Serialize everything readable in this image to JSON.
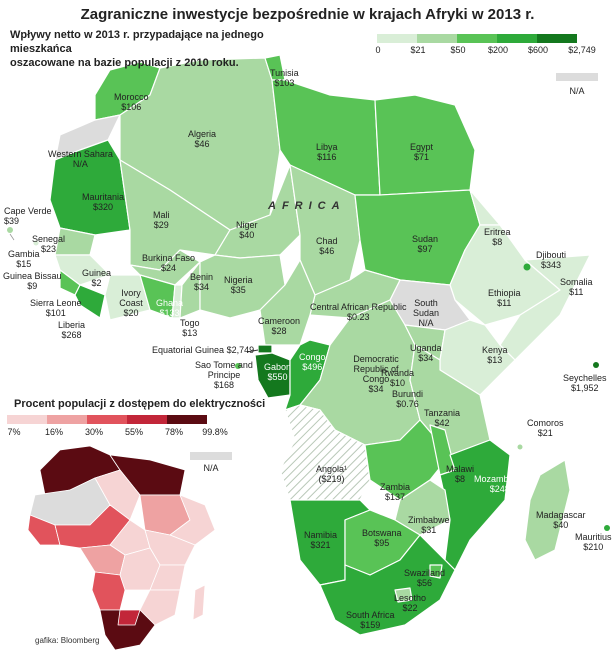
{
  "title": "Zagraniczne inwestycje bezpośrednie w krajach Afryki w 2013 r.",
  "subtitle": {
    "line1": "Wpływy netto w 2013 r. przypadające na jednego mieszkańca",
    "line2": "oszacowane na bazie populacji z 2010 roku."
  },
  "map_word": "AFRICA",
  "fdi_legend": {
    "colors": [
      "#d9eed7",
      "#a9d9a2",
      "#59c356",
      "#2eaa3a",
      "#14781e"
    ],
    "ticks": [
      "0",
      "$21",
      "$50",
      "$200",
      "$600",
      "$2,749"
    ],
    "na_color": "#dcdcdc",
    "na_label": "N/A"
  },
  "countries": [
    {
      "name": "Tunisia",
      "value": "$103"
    },
    {
      "name": "Morocco",
      "value": "$106"
    },
    {
      "name": "Algeria",
      "value": "$46"
    },
    {
      "name": "Libya",
      "value": "$116"
    },
    {
      "name": "Egypt",
      "value": "$71"
    },
    {
      "name": "Western Sahara",
      "value": "N/A"
    },
    {
      "name": "Mauritania",
      "value": "$320"
    },
    {
      "name": "Cape Verde",
      "value": "$39"
    },
    {
      "name": "Senegal",
      "value": "$23"
    },
    {
      "name": "Gambia",
      "value": "$15"
    },
    {
      "name": "Guinea Bissau",
      "value": "$9"
    },
    {
      "name": "Guinea",
      "value": "$2"
    },
    {
      "name": "Sierra Leone",
      "value": "$101"
    },
    {
      "name": "Liberia",
      "value": "$268"
    },
    {
      "name": "Mali",
      "value": "$29"
    },
    {
      "name": "Burkina Faso",
      "value": "$24"
    },
    {
      "name": "Ivory Coast",
      "value": "$20"
    },
    {
      "name": "Ghana",
      "value": "$133"
    },
    {
      "name": "Togo",
      "value": "$13"
    },
    {
      "name": "Benin",
      "value": "$34"
    },
    {
      "name": "Niger",
      "value": "$40"
    },
    {
      "name": "Nigeria",
      "value": "$35"
    },
    {
      "name": "Chad",
      "value": "$46"
    },
    {
      "name": "Sudan",
      "value": "$97"
    },
    {
      "name": "Eritrea",
      "value": "$8"
    },
    {
      "name": "Djibouti",
      "value": "$343"
    },
    {
      "name": "Somalia",
      "value": "$11"
    },
    {
      "name": "Ethiopia",
      "value": "$11"
    },
    {
      "name": "South Sudan",
      "value": "N/A"
    },
    {
      "name": "Central African Republic",
      "value": "$0.23"
    },
    {
      "name": "Cameroon",
      "value": "$28"
    },
    {
      "name": "Equatorial Guinea",
      "value": "$2,749"
    },
    {
      "name": "Sao Tome and Principe",
      "value": "$168"
    },
    {
      "name": "Gabon",
      "value": "$550"
    },
    {
      "name": "Congo",
      "value": "$496"
    },
    {
      "name": "Democratic Republic of Congo",
      "value": "$34"
    },
    {
      "name": "Uganda",
      "value": "$34"
    },
    {
      "name": "Kenya",
      "value": "$13"
    },
    {
      "name": "Rwanda",
      "value": "$10"
    },
    {
      "name": "Burundi",
      "value": "$0.76"
    },
    {
      "name": "Tanzania",
      "value": "$42"
    },
    {
      "name": "Seychelles",
      "value": "$1,952"
    },
    {
      "name": "Comoros",
      "value": "$21"
    },
    {
      "name": "Angola¹",
      "value": "($219)"
    },
    {
      "name": "Zambia",
      "value": "$137"
    },
    {
      "name": "Malawi",
      "value": "$8"
    },
    {
      "name": "Mozambique",
      "value": "$248"
    },
    {
      "name": "Zimbabwe",
      "value": "$31"
    },
    {
      "name": "Madagascar",
      "value": "$40"
    },
    {
      "name": "Mauritius",
      "value": "$210"
    },
    {
      "name": "Namibia",
      "value": "$321"
    },
    {
      "name": "Botswana",
      "value": "$95"
    },
    {
      "name": "Swaziland",
      "value": "$56"
    },
    {
      "name": "Lesotho",
      "value": "$22"
    },
    {
      "name": "South Africa",
      "value": "$159"
    }
  ],
  "electricity_legend": {
    "title": "Procent populacji z dostępem do elektryczności",
    "colors": [
      "#f6d4d4",
      "#eea2a2",
      "#e1535c",
      "#c22639",
      "#5b0b12"
    ],
    "ticks": [
      "7%",
      "16%",
      "30%",
      "55%",
      "78%",
      "99.8%"
    ],
    "na_color": "#dcdcdc",
    "na_label": "N/A"
  },
  "credit": "gafika: Bloomberg"
}
